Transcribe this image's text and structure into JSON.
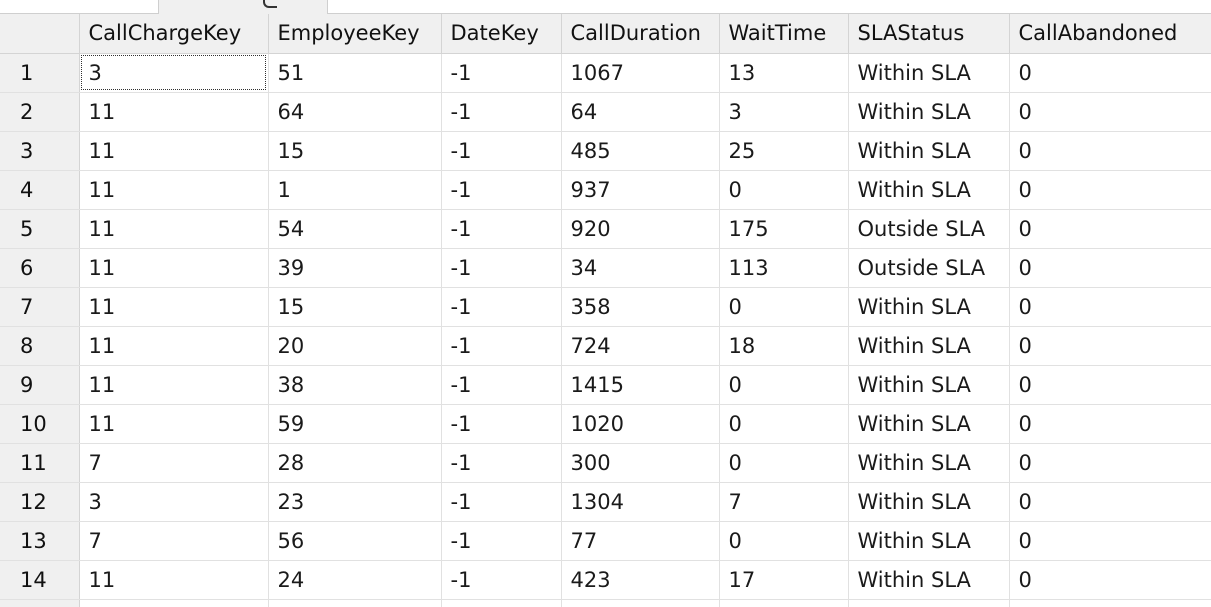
{
  "tab": {
    "icon": "tab-icon"
  },
  "grid": {
    "columns": [
      "CallChargeKey",
      "EmployeeKey",
      "DateKey",
      "CallDuration",
      "WaitTime",
      "SLAStatus",
      "CallAbandoned"
    ],
    "rows": [
      {
        "num": "1",
        "cells": [
          "3",
          "51",
          "-1",
          "1067",
          "13",
          "Within SLA",
          "0"
        ]
      },
      {
        "num": "2",
        "cells": [
          "11",
          "64",
          "-1",
          "64",
          "3",
          "Within SLA",
          "0"
        ]
      },
      {
        "num": "3",
        "cells": [
          "11",
          "15",
          "-1",
          "485",
          "25",
          "Within SLA",
          "0"
        ]
      },
      {
        "num": "4",
        "cells": [
          "11",
          "1",
          "-1",
          "937",
          "0",
          "Within SLA",
          "0"
        ]
      },
      {
        "num": "5",
        "cells": [
          "11",
          "54",
          "-1",
          "920",
          "175",
          "Outside SLA",
          "0"
        ]
      },
      {
        "num": "6",
        "cells": [
          "11",
          "39",
          "-1",
          "34",
          "113",
          "Outside SLA",
          "0"
        ]
      },
      {
        "num": "7",
        "cells": [
          "11",
          "15",
          "-1",
          "358",
          "0",
          "Within SLA",
          "0"
        ]
      },
      {
        "num": "8",
        "cells": [
          "11",
          "20",
          "-1",
          "724",
          "18",
          "Within SLA",
          "0"
        ]
      },
      {
        "num": "9",
        "cells": [
          "11",
          "38",
          "-1",
          "1415",
          "0",
          "Within SLA",
          "0"
        ]
      },
      {
        "num": "10",
        "cells": [
          "11",
          "59",
          "-1",
          "1020",
          "0",
          "Within SLA",
          "0"
        ]
      },
      {
        "num": "11",
        "cells": [
          "7",
          "28",
          "-1",
          "300",
          "0",
          "Within SLA",
          "0"
        ]
      },
      {
        "num": "12",
        "cells": [
          "3",
          "23",
          "-1",
          "1304",
          "7",
          "Within SLA",
          "0"
        ]
      },
      {
        "num": "13",
        "cells": [
          "7",
          "56",
          "-1",
          "77",
          "0",
          "Within SLA",
          "0"
        ]
      },
      {
        "num": "14",
        "cells": [
          "11",
          "24",
          "-1",
          "423",
          "17",
          "Within SLA",
          "0"
        ]
      }
    ]
  }
}
